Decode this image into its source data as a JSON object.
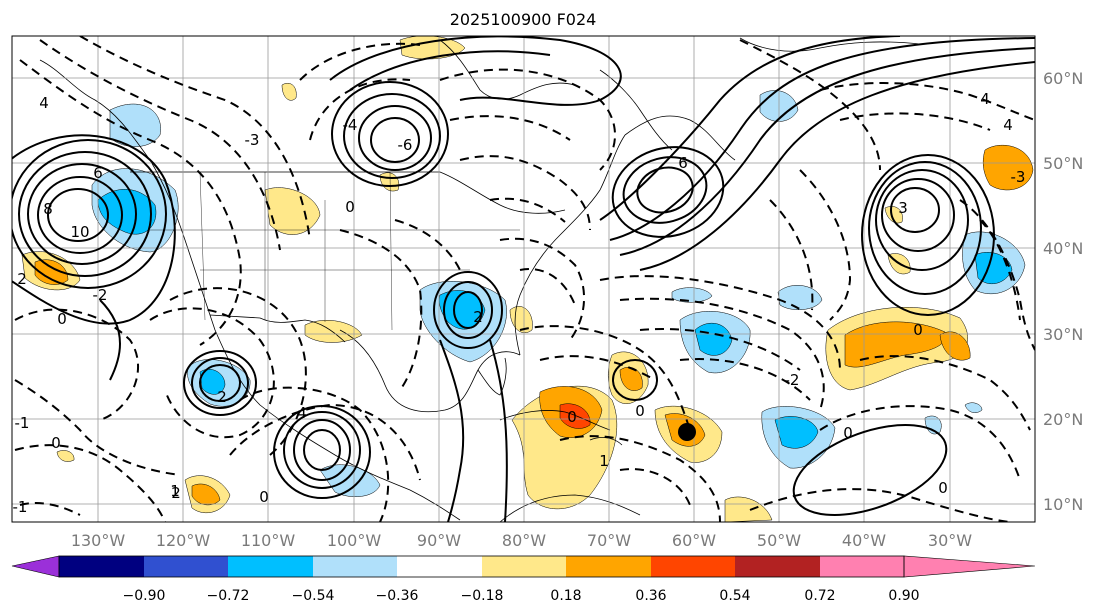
{
  "title": "2025100900 F024",
  "map": {
    "lon_labels": [
      "130°W",
      "120°W",
      "110°W",
      "100°W",
      "90°W",
      "80°W",
      "70°W",
      "60°W",
      "50°W",
      "40°W",
      "30°W"
    ],
    "lat_labels": [
      "60°N",
      "50°N",
      "40°N",
      "30°N",
      "20°N",
      "10°N"
    ],
    "contour_labels": [
      "10",
      "8",
      "6",
      "4",
      "2",
      "0",
      "-1",
      "-2",
      "-3",
      "-4",
      "-6",
      "0",
      "2",
      "4",
      "0",
      "2",
      "-1",
      "6",
      "2",
      "4",
      "0",
      "-3",
      "3",
      "4",
      "0",
      "0",
      "0",
      "0",
      "1",
      "1",
      "0",
      "-2"
    ],
    "storm_marker": "storm-center-dot"
  },
  "colorbar": {
    "ticks": [
      "−0.90",
      "−0.72",
      "−0.54",
      "−0.36",
      "−0.18",
      "0.18",
      "0.36",
      "0.54",
      "0.72",
      "0.90"
    ],
    "colors": [
      "#9b30d9",
      "#000080",
      "#3050d0",
      "#00bfff",
      "#b0e0fa",
      "#ffffff",
      "#ffe88a",
      "#ffa500",
      "#ff4500",
      "#b22222",
      "#ff80b0"
    ]
  },
  "palette": {
    "neg_strong": "#00bfff",
    "neg_weak": "#b0e0fa",
    "pos_weak": "#ffe88a",
    "pos_mid": "#ffa500",
    "pos_strong": "#ff4500",
    "grid": "#999999",
    "label_gray": "#7a7a7a"
  }
}
